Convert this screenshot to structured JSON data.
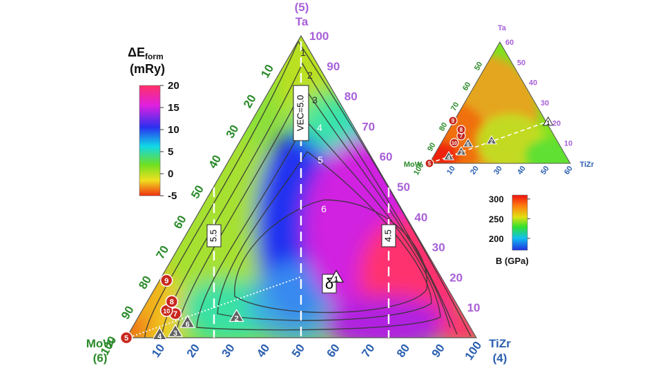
{
  "chart_data": [
    {
      "type": "ternary-heatmap",
      "corners": {
        "top": {
          "name": "Ta",
          "valence": "(5)"
        },
        "left": {
          "name": "MoW",
          "valence": "(6)"
        },
        "right": {
          "name": "TiZr",
          "valence": "(4)"
        }
      },
      "axes": {
        "MoW_ticks": [
          "10",
          "20",
          "30",
          "40",
          "50",
          "60",
          "70",
          "80",
          "90",
          "100"
        ],
        "TiZr_ticks": [
          "10",
          "20",
          "30",
          "40",
          "50",
          "60",
          "70",
          "80",
          "90",
          "100"
        ],
        "Ta_ticks": [
          "10",
          "20",
          "30",
          "40",
          "50",
          "60",
          "70",
          "80",
          "90",
          "100"
        ]
      },
      "colorbar": {
        "title_main": "ΔE",
        "title_sub": "form",
        "unit": "(mRy)",
        "range": [
          -5,
          20
        ],
        "ticks": [
          "20",
          "15",
          "10",
          "5",
          "0",
          "-5"
        ]
      },
      "contour_levels": [
        "1",
        "2",
        "3",
        "4",
        "5",
        "6"
      ],
      "vec_lines": [
        {
          "label": "5.5",
          "TiZr": 25
        },
        {
          "label": "VEC=5.0",
          "TiZr": 50
        },
        {
          "label": "4.5",
          "TiZr": 75
        }
      ],
      "delta_label": "δ",
      "path_points": [
        {
          "label": "5",
          "color": "red",
          "MoW": 100,
          "TiZr": 0,
          "Ta": 0
        },
        {
          "label": "4",
          "color": "gray",
          "MoW": 90,
          "TiZr": 9,
          "Ta": 1
        },
        {
          "label": "3",
          "color": "gray",
          "MoW": 85,
          "TiZr": 13,
          "Ta": 2
        },
        {
          "label": "6",
          "color": "gray",
          "MoW": 80,
          "TiZr": 15,
          "Ta": 5
        },
        {
          "label": "2",
          "color": "gray",
          "MoW": 65,
          "TiZr": 28,
          "Ta": 7
        },
        {
          "label": "1",
          "color": "white",
          "MoW": 30,
          "TiZr": 50,
          "Ta": 20
        },
        {
          "label": "7",
          "color": "red",
          "MoW": 82,
          "TiZr": 10,
          "Ta": 8
        },
        {
          "label": "10",
          "color": "red",
          "MoW": 84,
          "TiZr": 7,
          "Ta": 9
        },
        {
          "label": "8",
          "color": "red",
          "MoW": 81,
          "TiZr": 7,
          "Ta": 12
        },
        {
          "label": "9",
          "color": "red",
          "MoW": 79,
          "TiZr": 2,
          "Ta": 19
        }
      ]
    },
    {
      "type": "ternary-heatmap-inset",
      "corners": {
        "top": "Ta",
        "left": "MoW",
        "right": "TiZr"
      },
      "axes": {
        "MoW_ticks": [
          "100",
          "90",
          "80",
          "70",
          "60",
          "50"
        ],
        "TiZr_ticks": [
          "10",
          "20",
          "30",
          "40",
          "50",
          "60"
        ],
        "Ta_ticks": [
          "10",
          "20",
          "30",
          "40",
          "50",
          "60"
        ],
        "range_max": 60
      },
      "colorbar": {
        "title": "B (GPa)",
        "range": [
          170,
          310
        ],
        "ticks": [
          "300",
          "250",
          "200"
        ]
      },
      "path_points": [
        {
          "label": "5",
          "color": "red"
        },
        {
          "label": "4",
          "color": "gray"
        },
        {
          "label": "3",
          "color": "gray"
        },
        {
          "label": "6",
          "color": "gray"
        },
        {
          "label": "2",
          "color": "gray"
        },
        {
          "label": "1",
          "color": "white"
        },
        {
          "label": "7",
          "color": "red"
        },
        {
          "label": "10",
          "color": "red"
        },
        {
          "label": "8",
          "color": "red"
        },
        {
          "label": "9",
          "color": "red"
        }
      ]
    }
  ],
  "colors": {
    "green_axis": "#2a8a2a",
    "blue_axis": "#2a5fb0",
    "purple_axis": "#a860d8",
    "marker_red": "#c8281e",
    "marker_gray": "#666666"
  }
}
